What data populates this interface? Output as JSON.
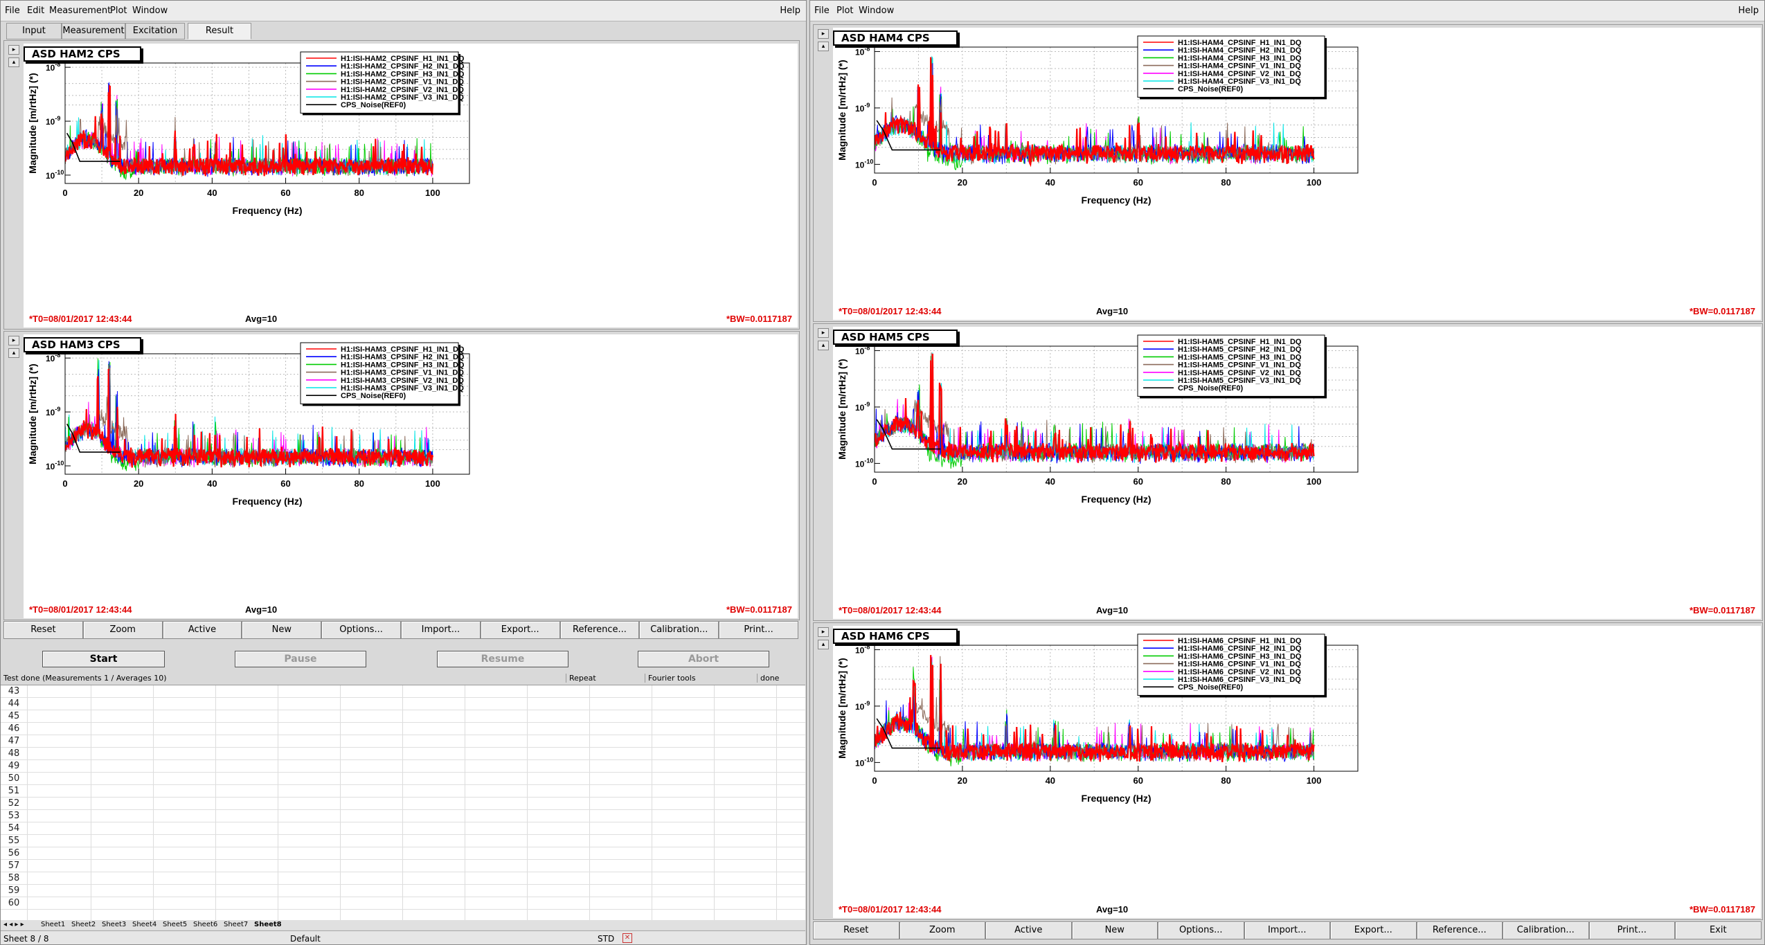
{
  "left_window": {
    "menu": [
      "File",
      "Edit",
      "Measurement",
      "Plot",
      "Window"
    ],
    "help": "Help",
    "tabs": [
      "Input",
      "Measurement",
      "Excitation",
      "Result"
    ],
    "active_tab": "Result",
    "buttons": [
      "Reset",
      "Zoom",
      "Active",
      "New",
      "Options...",
      "Import...",
      "Export...",
      "Reference...",
      "Calibration...",
      "Print..."
    ],
    "run_buttons": {
      "start": "Start",
      "pause": "Pause",
      "resume": "Resume",
      "abort": "Abort"
    },
    "status": {
      "text": "Test done (Measurements 1 / Averages 10)",
      "repeat": "Repeat",
      "fourier": "Fourier tools",
      "done": "done"
    },
    "rows": [
      "43",
      "44",
      "45",
      "46",
      "47",
      "48",
      "49",
      "50",
      "51",
      "52",
      "53",
      "54",
      "55",
      "56",
      "57",
      "58",
      "59",
      "60"
    ],
    "sheet_tabs": [
      "Sheet1",
      "Sheet2",
      "Sheet3",
      "Sheet4",
      "Sheet5",
      "Sheet6",
      "Sheet7",
      "Sheet8"
    ],
    "active_sheet": "Sheet8",
    "statusbar": {
      "sheet": "Sheet 8 / 8",
      "style": "Default",
      "mode": "STD"
    }
  },
  "right_window": {
    "menu": [
      "File",
      "Plot",
      "Window"
    ],
    "help": "Help",
    "buttons": [
      "Reset",
      "Zoom",
      "Active",
      "New",
      "Options...",
      "Import...",
      "Export...",
      "Reference...",
      "Calibration...",
      "Print...",
      "Exit"
    ]
  },
  "colors": {
    "H1": "#ff0000",
    "H2": "#0000ff",
    "H3": "#00cc00",
    "V1": "#8b6a5a",
    "V2": "#ff00ff",
    "V3": "#00e5e5",
    "REF": "#000000",
    "footer": "#e00000"
  },
  "plot_footer": {
    "t0": "*T0=08/01/2017 12:43:44",
    "avg": "Avg=10",
    "bw": "*BW=0.0117187"
  },
  "chart_data": [
    {
      "id": "HAM2",
      "type": "line",
      "title": "ASD HAM2 CPS",
      "xlabel": "Frequency (Hz)",
      "ylabel": "Magnitude [m/rtHz] (*)",
      "log_y": true,
      "xlim": [
        0,
        110
      ],
      "ylim": [
        7e-11,
        1.2e-08
      ],
      "xticks": [
        0,
        20,
        40,
        60,
        80,
        100
      ],
      "yticks": [
        "10^-8",
        "10^-9",
        "10^-10"
      ],
      "legend_placement": "top-right",
      "grid": true,
      "series": [
        {
          "name": "H1:ISI-HAM2_CPSINF_H1_IN1_DQ"
        },
        {
          "name": "H1:ISI-HAM2_CPSINF_H2_IN1_DQ"
        },
        {
          "name": "H1:ISI-HAM2_CPSINF_H3_IN1_DQ"
        },
        {
          "name": "H1:ISI-HAM2_CPSINF_V1_IN1_DQ"
        },
        {
          "name": "H1:ISI-HAM2_CPSINF_V2_IN1_DQ"
        },
        {
          "name": "H1:ISI-HAM2_CPSINF_V3_IN1_DQ"
        },
        {
          "name": "CPS_Noise(REF0)"
        }
      ],
      "floor": 1.5e-10,
      "peaks": [
        [
          5,
          6e-10
        ],
        [
          10,
          2e-09
        ],
        [
          12,
          5e-09
        ],
        [
          14,
          3e-09
        ],
        [
          30,
          6e-10
        ],
        [
          35,
          5e-10
        ],
        [
          41,
          5e-10
        ],
        [
          60,
          4e-10
        ]
      ]
    },
    {
      "id": "HAM3",
      "type": "line",
      "title": "ASD HAM3 CPS",
      "xlabel": "Frequency (Hz)",
      "ylabel": "Magnitude [m/rtHz] (*)",
      "log_y": true,
      "xlim": [
        0,
        110
      ],
      "ylim": [
        7e-11,
        1.2e-08
      ],
      "xticks": [
        0,
        20,
        40,
        60,
        80,
        100
      ],
      "yticks": [
        "10^-8",
        "10^-9",
        "10^-10"
      ],
      "legend_placement": "top-right",
      "grid": true,
      "series": [
        {
          "name": "H1:ISI-HAM3_CPSINF_H1_IN1_DQ"
        },
        {
          "name": "H1:ISI-HAM3_CPSINF_H2_IN1_DQ"
        },
        {
          "name": "H1:ISI-HAM3_CPSINF_H3_IN1_DQ"
        },
        {
          "name": "H1:ISI-HAM3_CPSINF_V1_IN1_DQ"
        },
        {
          "name": "H1:ISI-HAM3_CPSINF_V2_IN1_DQ"
        },
        {
          "name": "H1:ISI-HAM3_CPSINF_V3_IN1_DQ"
        },
        {
          "name": "CPS_Noise(REF0)"
        }
      ],
      "floor": 1.5e-10,
      "peaks": [
        [
          5,
          7e-10
        ],
        [
          9,
          5e-09
        ],
        [
          12,
          8e-09
        ],
        [
          14,
          2e-09
        ],
        [
          30,
          8e-10
        ],
        [
          35,
          6e-10
        ],
        [
          41,
          4e-10
        ]
      ]
    },
    {
      "id": "HAM4",
      "type": "line",
      "title": "ASD HAM4 CPS",
      "xlabel": "Frequency (Hz)",
      "ylabel": "Magnitude [m/rtHz] (*)",
      "log_y": true,
      "xlim": [
        0,
        110
      ],
      "ylim": [
        7e-11,
        1.2e-08
      ],
      "xticks": [
        0,
        20,
        40,
        60,
        80,
        100
      ],
      "yticks": [
        "10^-8",
        "10^-9",
        "10^-10"
      ],
      "legend_placement": "top-right",
      "grid": true,
      "series": [
        {
          "name": "H1:ISI-HAM4_CPSINF_H1_IN1_DQ"
        },
        {
          "name": "H1:ISI-HAM4_CPSINF_H2_IN1_DQ"
        },
        {
          "name": "H1:ISI-HAM4_CPSINF_H3_IN1_DQ"
        },
        {
          "name": "H1:ISI-HAM4_CPSINF_V1_IN1_DQ"
        },
        {
          "name": "H1:ISI-HAM4_CPSINF_V2_IN1_DQ"
        },
        {
          "name": "H1:ISI-HAM4_CPSINF_V3_IN1_DQ"
        },
        {
          "name": "CPS_Noise(REF0)"
        }
      ],
      "floor": 1.6e-10,
      "peaks": [
        [
          5,
          8e-10
        ],
        [
          10,
          3e-09
        ],
        [
          13,
          8e-09
        ],
        [
          15,
          2e-09
        ],
        [
          30,
          5e-10
        ],
        [
          60,
          6e-10
        ]
      ]
    },
    {
      "id": "HAM5",
      "type": "line",
      "title": "ASD HAM5 CPS",
      "xlabel": "Frequency (Hz)",
      "ylabel": "Magnitude [m/rtHz] (*)",
      "log_y": true,
      "xlim": [
        0,
        110
      ],
      "ylim": [
        7e-11,
        1.2e-08
      ],
      "xticks": [
        0,
        20,
        40,
        60,
        80,
        100
      ],
      "yticks": [
        "10^-8",
        "10^-9",
        "10^-10"
      ],
      "legend_placement": "top-right",
      "grid": true,
      "series": [
        {
          "name": "H1:ISI-HAM5_CPSINF_H1_IN1_DQ"
        },
        {
          "name": "H1:ISI-HAM5_CPSINF_H2_IN1_DQ"
        },
        {
          "name": "H1:ISI-HAM5_CPSINF_H3_IN1_DQ"
        },
        {
          "name": "H1:ISI-HAM5_CPSINF_V1_IN1_DQ"
        },
        {
          "name": "H1:ISI-HAM5_CPSINF_V2_IN1_DQ"
        },
        {
          "name": "H1:ISI-HAM5_CPSINF_V3_IN1_DQ"
        },
        {
          "name": "CPS_Noise(REF0)"
        }
      ],
      "floor": 1.6e-10,
      "peaks": [
        [
          5,
          7e-10
        ],
        [
          10,
          2e-09
        ],
        [
          13,
          8e-09
        ],
        [
          15,
          3e-09
        ],
        [
          30,
          6e-10
        ],
        [
          41,
          4e-10
        ],
        [
          58,
          5e-10
        ]
      ]
    },
    {
      "id": "HAM6",
      "type": "line",
      "title": "ASD HAM6 CPS",
      "xlabel": "Frequency (Hz)",
      "ylabel": "Magnitude [m/rtHz] (*)",
      "log_y": true,
      "xlim": [
        0,
        110
      ],
      "ylim": [
        7e-11,
        1.2e-08
      ],
      "xticks": [
        0,
        20,
        40,
        60,
        80,
        100
      ],
      "yticks": [
        "10^-8",
        "10^-9",
        "10^-10"
      ],
      "legend_placement": "top-right",
      "grid": true,
      "series": [
        {
          "name": "H1:ISI-HAM6_CPSINF_H1_IN1_DQ"
        },
        {
          "name": "H1:ISI-HAM6_CPSINF_H2_IN1_DQ"
        },
        {
          "name": "H1:ISI-HAM6_CPSINF_H3_IN1_DQ"
        },
        {
          "name": "H1:ISI-HAM6_CPSINF_V1_IN1_DQ"
        },
        {
          "name": "H1:ISI-HAM6_CPSINF_V2_IN1_DQ"
        },
        {
          "name": "H1:ISI-HAM6_CPSINF_V3_IN1_DQ"
        },
        {
          "name": "CPS_Noise(REF0)"
        }
      ],
      "floor": 1.6e-10,
      "peaks": [
        [
          5,
          8e-10
        ],
        [
          9,
          3e-09
        ],
        [
          13,
          8e-09
        ],
        [
          15,
          3e-09
        ],
        [
          30,
          7e-10
        ],
        [
          41,
          5e-10
        ],
        [
          58,
          5e-10
        ]
      ]
    }
  ]
}
